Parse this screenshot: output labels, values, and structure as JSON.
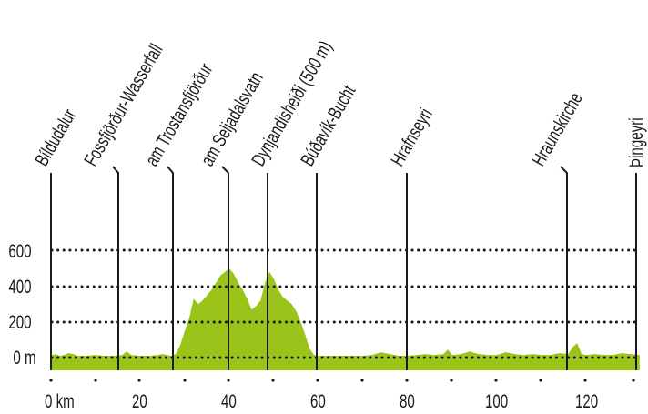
{
  "chart_data": {
    "type": "area",
    "title": "",
    "xlabel": "km",
    "ylabel": "m",
    "x_ticks": [
      0,
      20,
      40,
      60,
      80,
      100,
      120
    ],
    "x_tick_labels": [
      "0 km",
      "20",
      "40",
      "60",
      "80",
      "100",
      "120"
    ],
    "y_ticks": [
      0,
      200,
      400,
      600
    ],
    "y_tick_labels": [
      "0 m",
      "200",
      "400",
      "600"
    ],
    "xlim": [
      0,
      132
    ],
    "ylim": [
      -70,
      600
    ],
    "grid": "horizontal dotted lines at 0, 200, 400, 600 m",
    "fill_color": "#9bc41a",
    "series": [
      {
        "name": "Elevation",
        "x": [
          0,
          1,
          2,
          3,
          4,
          5,
          6,
          8,
          10,
          12,
          14,
          16,
          17,
          18,
          20,
          22,
          24,
          25,
          26,
          27,
          28,
          29,
          30,
          31,
          32,
          33,
          34,
          35,
          36,
          37,
          38,
          39,
          40,
          41,
          42,
          43,
          44,
          45,
          46,
          47,
          48,
          49,
          50,
          51,
          52,
          53,
          54,
          55,
          56,
          57,
          58,
          59,
          60,
          62,
          64,
          66,
          68,
          70,
          72,
          74,
          76,
          78,
          80,
          82,
          84,
          86,
          88,
          89,
          90,
          92,
          94,
          95,
          96,
          98,
          100,
          102,
          104,
          106,
          108,
          110,
          112,
          114,
          116,
          117,
          118,
          119,
          120,
          122,
          124,
          126,
          128,
          130,
          132
        ],
        "y": [
          10,
          20,
          10,
          15,
          25,
          20,
          10,
          10,
          15,
          10,
          10,
          15,
          35,
          15,
          10,
          10,
          15,
          20,
          15,
          10,
          20,
          70,
          150,
          220,
          330,
          300,
          320,
          350,
          380,
          420,
          460,
          480,
          500,
          470,
          420,
          380,
          330,
          270,
          290,
          320,
          420,
          480,
          440,
          380,
          340,
          320,
          300,
          260,
          200,
          130,
          50,
          15,
          10,
          10,
          10,
          10,
          10,
          10,
          15,
          30,
          20,
          10,
          10,
          15,
          20,
          15,
          20,
          45,
          15,
          20,
          35,
          25,
          20,
          15,
          15,
          30,
          20,
          15,
          20,
          15,
          15,
          25,
          20,
          60,
          80,
          20,
          15,
          20,
          15,
          15,
          25,
          20,
          15
        ]
      }
    ],
    "waypoints": [
      {
        "name": "Bíldudalur",
        "km": 0
      },
      {
        "name": "Fossfjörður-Wasserfall",
        "km": 15
      },
      {
        "name": "am Trostansfjörður",
        "km": 27.5
      },
      {
        "name": "am Seljadalsvatn",
        "km": 40
      },
      {
        "name": "Dynjandisheiði (500 m)",
        "km": 48.5
      },
      {
        "name": "Búðavík-Bucht",
        "km": 59.5
      },
      {
        "name": "Hrafnseyri",
        "km": 80
      },
      {
        "name": "Hraunskirche",
        "km": 115.5
      },
      {
        "name": "Þingeyri",
        "km": 131.5
      }
    ]
  },
  "labels": {
    "y0": "0 m",
    "y200": "200",
    "y400": "400",
    "y600": "600",
    "x0": "0 km",
    "x20": "20",
    "x40": "40",
    "x60": "60",
    "x80": "80",
    "x100": "100",
    "x120": "120",
    "wp0": "Bíldudalur",
    "wp1": "Fossfjörður-Wasserfall",
    "wp2": "am Trostansfjörður",
    "wp3": "am Seljadalsvatn",
    "wp4": "Dynjandisheiði (500 m)",
    "wp5": "Búðavík-Bucht",
    "wp6": "Hrafnseyri",
    "wp7": "Hraunskirche",
    "wp8": "Þingeyri"
  }
}
